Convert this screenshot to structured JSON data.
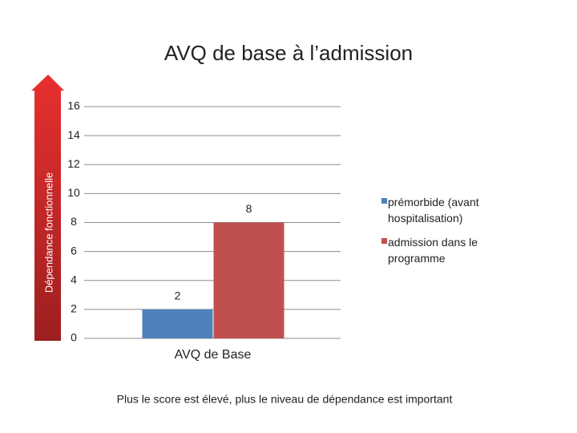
{
  "chart_data": {
    "type": "bar",
    "title": "AVQ de base à l’admission",
    "y_label": "Dépendance fonctionnelle",
    "note": "Plus le score est élevé, plus le niveau de dépendance est important",
    "categories": [
      "AVQ de Base"
    ],
    "series": [
      {
        "name": "prémorbide (avant hospitalisation)",
        "color": "#4f81bd",
        "values": [
          2
        ]
      },
      {
        "name": "admission dans le programme",
        "color": "#c0504d",
        "values": [
          8
        ]
      }
    ],
    "ylim": [
      0,
      16
    ],
    "yticks": [
      0,
      2,
      4,
      6,
      8,
      10,
      12,
      14,
      16
    ],
    "grid": true,
    "legend": "right"
  }
}
